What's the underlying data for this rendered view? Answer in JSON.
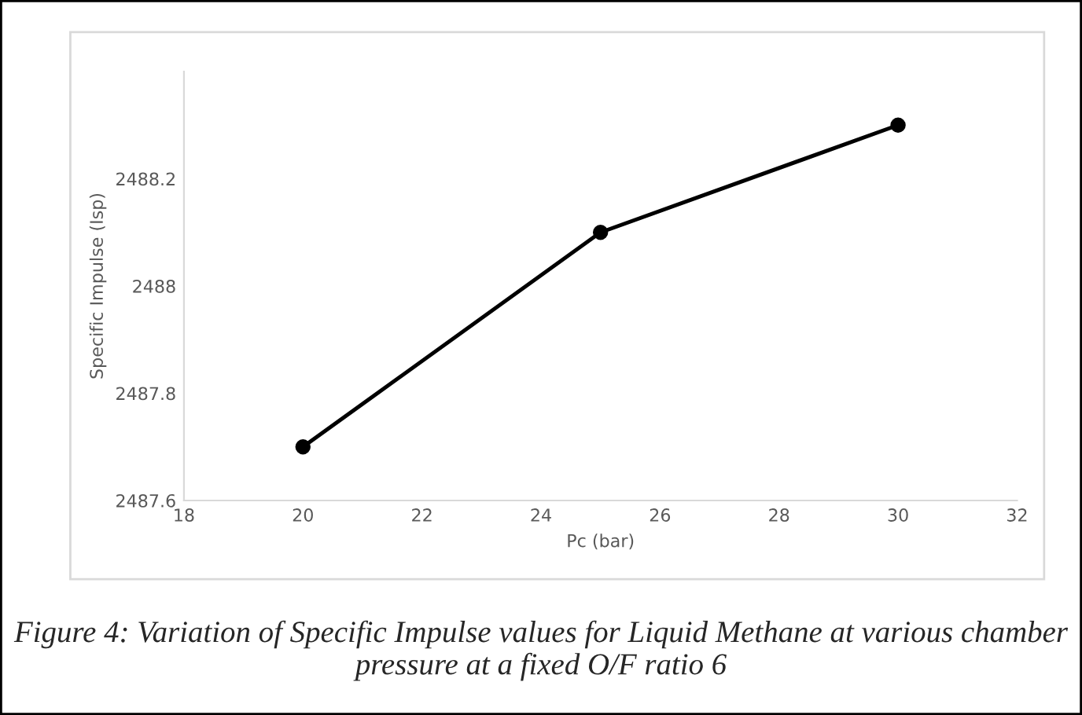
{
  "chart_data": {
    "type": "line",
    "x": [
      20,
      25,
      30
    ],
    "series": [
      {
        "color": "#000000",
        "values": [
          2487.7,
          2488.1,
          2488.3
        ]
      }
    ],
    "xlabel": "Pc (bar)",
    "ylabel": "Specific Impulse (Isp)",
    "xlim": [
      18,
      32
    ],
    "xticks": [
      18,
      20,
      22,
      24,
      26,
      28,
      30,
      32
    ],
    "ylim": [
      2487.6,
      2488.4
    ],
    "yticks": [
      2487.6,
      2487.8,
      2488,
      2488.2
    ],
    "marker": "circle",
    "line_style": "solid",
    "grid": false,
    "legend": false,
    "annotations": [
      "Figure 4: Variation of Specific Impulse values for Liquid Methane at various chamber pressure at a fixed O/F ratio 6"
    ]
  }
}
